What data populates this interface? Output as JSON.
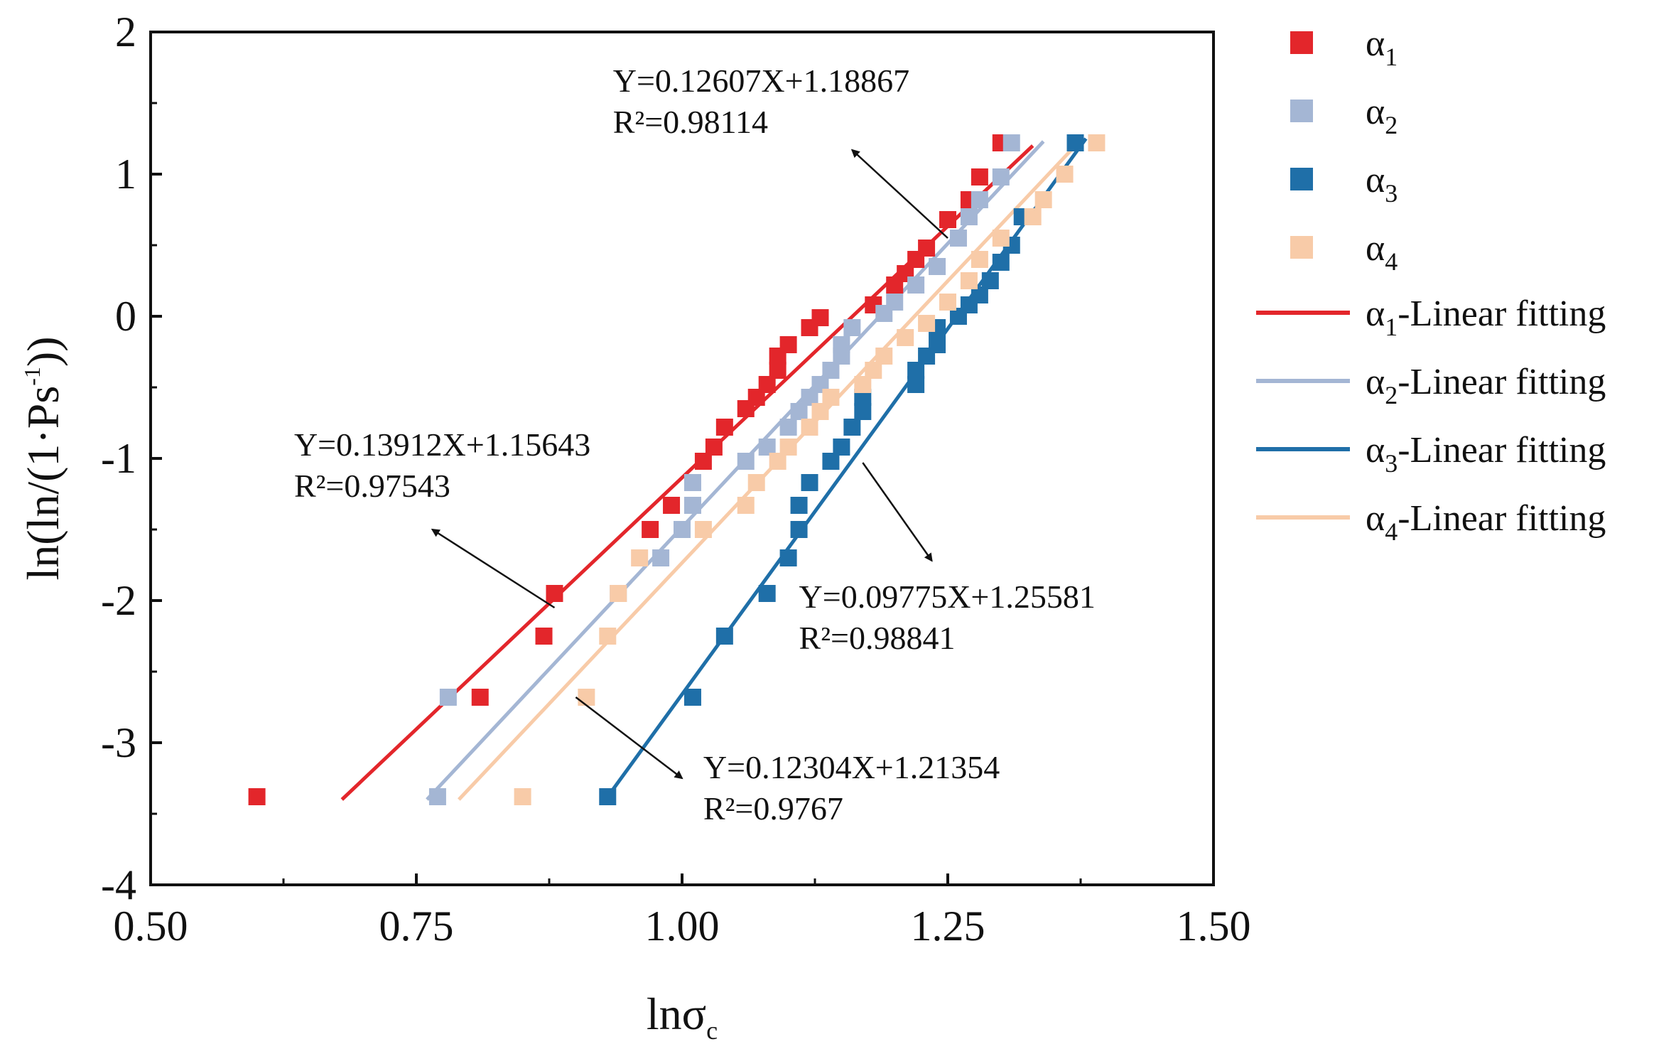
{
  "chart_data": {
    "type": "scatter",
    "xlabel": {
      "base": "lnσ",
      "sub": "c"
    },
    "ylabel": {
      "pre": "ln(ln/(1·Ps",
      "sup": "-1",
      "post": "))"
    },
    "xlim": [
      0.5,
      1.5
    ],
    "ylim": [
      -4,
      2
    ],
    "xticks": [
      {
        "value": 0.5,
        "label": "0.50"
      },
      {
        "value": 0.75,
        "label": "0.75"
      },
      {
        "value": 1.0,
        "label": "1.00"
      },
      {
        "value": 1.25,
        "label": "1.25"
      },
      {
        "value": 1.5,
        "label": "1.50"
      }
    ],
    "yticks": [
      {
        "value": 2,
        "label": "2"
      },
      {
        "value": 1,
        "label": "1"
      },
      {
        "value": 0,
        "label": "0"
      },
      {
        "value": -1,
        "label": "-1"
      },
      {
        "value": -2,
        "label": "-2"
      },
      {
        "value": -3,
        "label": "-3"
      },
      {
        "value": -4,
        "label": "-4"
      }
    ],
    "legend_position": "right",
    "series": [
      {
        "name": "α",
        "sub": "1",
        "fit_label": "-Linear fitting",
        "color": "#e3262b",
        "fit": {
          "x": [
            0.68,
            1.33
          ],
          "y": [
            -3.4,
            1.2
          ]
        },
        "points": [
          [
            0.6,
            -3.38
          ],
          [
            0.81,
            -2.68
          ],
          [
            0.87,
            -2.25
          ],
          [
            0.88,
            -1.95
          ],
          [
            0.97,
            -1.5
          ],
          [
            0.99,
            -1.33
          ],
          [
            1.02,
            -1.02
          ],
          [
            1.03,
            -0.92
          ],
          [
            1.04,
            -0.78
          ],
          [
            1.06,
            -0.65
          ],
          [
            1.07,
            -0.57
          ],
          [
            1.08,
            -0.48
          ],
          [
            1.09,
            -0.38
          ],
          [
            1.09,
            -0.28
          ],
          [
            1.1,
            -0.2
          ],
          [
            1.12,
            -0.08
          ],
          [
            1.13,
            -0.01
          ],
          [
            1.18,
            0.08
          ],
          [
            1.2,
            0.22
          ],
          [
            1.21,
            0.3
          ],
          [
            1.22,
            0.4
          ],
          [
            1.23,
            0.48
          ],
          [
            1.25,
            0.68
          ],
          [
            1.27,
            0.82
          ],
          [
            1.28,
            0.98
          ],
          [
            1.3,
            1.22
          ]
        ]
      },
      {
        "name": "α",
        "sub": "2",
        "fit_label": "-Linear fitting",
        "color": "#a4b6d4",
        "fit": {
          "x": [
            0.76,
            1.34
          ],
          "y": [
            -3.4,
            1.23
          ]
        },
        "points": [
          [
            0.77,
            -3.38
          ],
          [
            0.78,
            -2.68
          ],
          [
            0.94,
            -1.95
          ],
          [
            0.98,
            -1.7
          ],
          [
            1.0,
            -1.5
          ],
          [
            1.01,
            -1.33
          ],
          [
            1.01,
            -1.17
          ],
          [
            1.06,
            -1.02
          ],
          [
            1.08,
            -0.92
          ],
          [
            1.1,
            -0.78
          ],
          [
            1.11,
            -0.67
          ],
          [
            1.12,
            -0.57
          ],
          [
            1.13,
            -0.48
          ],
          [
            1.14,
            -0.38
          ],
          [
            1.15,
            -0.28
          ],
          [
            1.15,
            -0.2
          ],
          [
            1.16,
            -0.08
          ],
          [
            1.19,
            0.02
          ],
          [
            1.2,
            0.1
          ],
          [
            1.22,
            0.22
          ],
          [
            1.24,
            0.35
          ],
          [
            1.26,
            0.55
          ],
          [
            1.27,
            0.7
          ],
          [
            1.28,
            0.82
          ],
          [
            1.3,
            0.98
          ],
          [
            1.31,
            1.22
          ]
        ]
      },
      {
        "name": "α",
        "sub": "3",
        "fit_label": "-Linear fitting",
        "color": "#1f6fa8",
        "fit": {
          "x": [
            0.93,
            1.38
          ],
          "y": [
            -3.38,
            1.25
          ]
        },
        "points": [
          [
            0.93,
            -3.38
          ],
          [
            1.01,
            -2.68
          ],
          [
            1.04,
            -2.25
          ],
          [
            1.08,
            -1.95
          ],
          [
            1.1,
            -1.7
          ],
          [
            1.11,
            -1.5
          ],
          [
            1.11,
            -1.33
          ],
          [
            1.12,
            -1.17
          ],
          [
            1.14,
            -1.02
          ],
          [
            1.15,
            -0.92
          ],
          [
            1.16,
            -0.78
          ],
          [
            1.17,
            -0.67
          ],
          [
            1.17,
            -0.57
          ],
          [
            1.22,
            -0.48
          ],
          [
            1.22,
            -0.38
          ],
          [
            1.23,
            -0.28
          ],
          [
            1.24,
            -0.2
          ],
          [
            1.24,
            -0.08
          ],
          [
            1.26,
            0.0
          ],
          [
            1.27,
            0.08
          ],
          [
            1.28,
            0.15
          ],
          [
            1.29,
            0.25
          ],
          [
            1.3,
            0.38
          ],
          [
            1.31,
            0.5
          ],
          [
            1.32,
            0.7
          ],
          [
            1.37,
            1.22
          ]
        ]
      },
      {
        "name": "α",
        "sub": "4",
        "fit_label": "-Linear fitting",
        "color": "#f8cba8",
        "fit": {
          "x": [
            0.79,
            1.37
          ],
          "y": [
            -3.4,
            1.2
          ]
        },
        "points": [
          [
            0.85,
            -3.38
          ],
          [
            0.91,
            -2.68
          ],
          [
            0.93,
            -2.25
          ],
          [
            0.94,
            -1.95
          ],
          [
            0.96,
            -1.7
          ],
          [
            1.02,
            -1.5
          ],
          [
            1.06,
            -1.33
          ],
          [
            1.07,
            -1.17
          ],
          [
            1.09,
            -1.02
          ],
          [
            1.1,
            -0.92
          ],
          [
            1.12,
            -0.78
          ],
          [
            1.13,
            -0.67
          ],
          [
            1.14,
            -0.57
          ],
          [
            1.17,
            -0.48
          ],
          [
            1.18,
            -0.38
          ],
          [
            1.19,
            -0.28
          ],
          [
            1.21,
            -0.15
          ],
          [
            1.23,
            -0.05
          ],
          [
            1.25,
            0.1
          ],
          [
            1.27,
            0.25
          ],
          [
            1.28,
            0.4
          ],
          [
            1.3,
            0.55
          ],
          [
            1.33,
            0.7
          ],
          [
            1.34,
            0.82
          ],
          [
            1.36,
            1.0
          ],
          [
            1.39,
            1.22
          ]
        ]
      }
    ],
    "annotations": [
      {
        "line1": "Y=0.12607X+1.18867",
        "line2": "R²=0.98114",
        "text_at": [
          0.935,
          1.58
        ],
        "arrow_from": [
          1.25,
          0.55
        ],
        "arrow_to": [
          1.16,
          1.17
        ]
      },
      {
        "line1": "Y=0.13912X+1.15643",
        "line2": "R²=0.97543",
        "text_at": [
          0.635,
          -0.98
        ],
        "arrow_from": [
          0.88,
          -2.05
        ],
        "arrow_to": [
          0.765,
          -1.5
        ]
      },
      {
        "line1": "Y=0.09775X+1.25581",
        "line2": "R²=0.98841",
        "text_at": [
          1.11,
          -2.05
        ],
        "arrow_from": [
          1.17,
          -1.03
        ],
        "arrow_to": [
          1.235,
          -1.72
        ]
      },
      {
        "line1": "Y=0.12304X+1.21354",
        "line2": "R²=0.9767",
        "text_at": [
          1.02,
          -3.25
        ],
        "arrow_from": [
          0.9,
          -2.68
        ],
        "arrow_to": [
          1.0,
          -3.25
        ]
      }
    ]
  }
}
